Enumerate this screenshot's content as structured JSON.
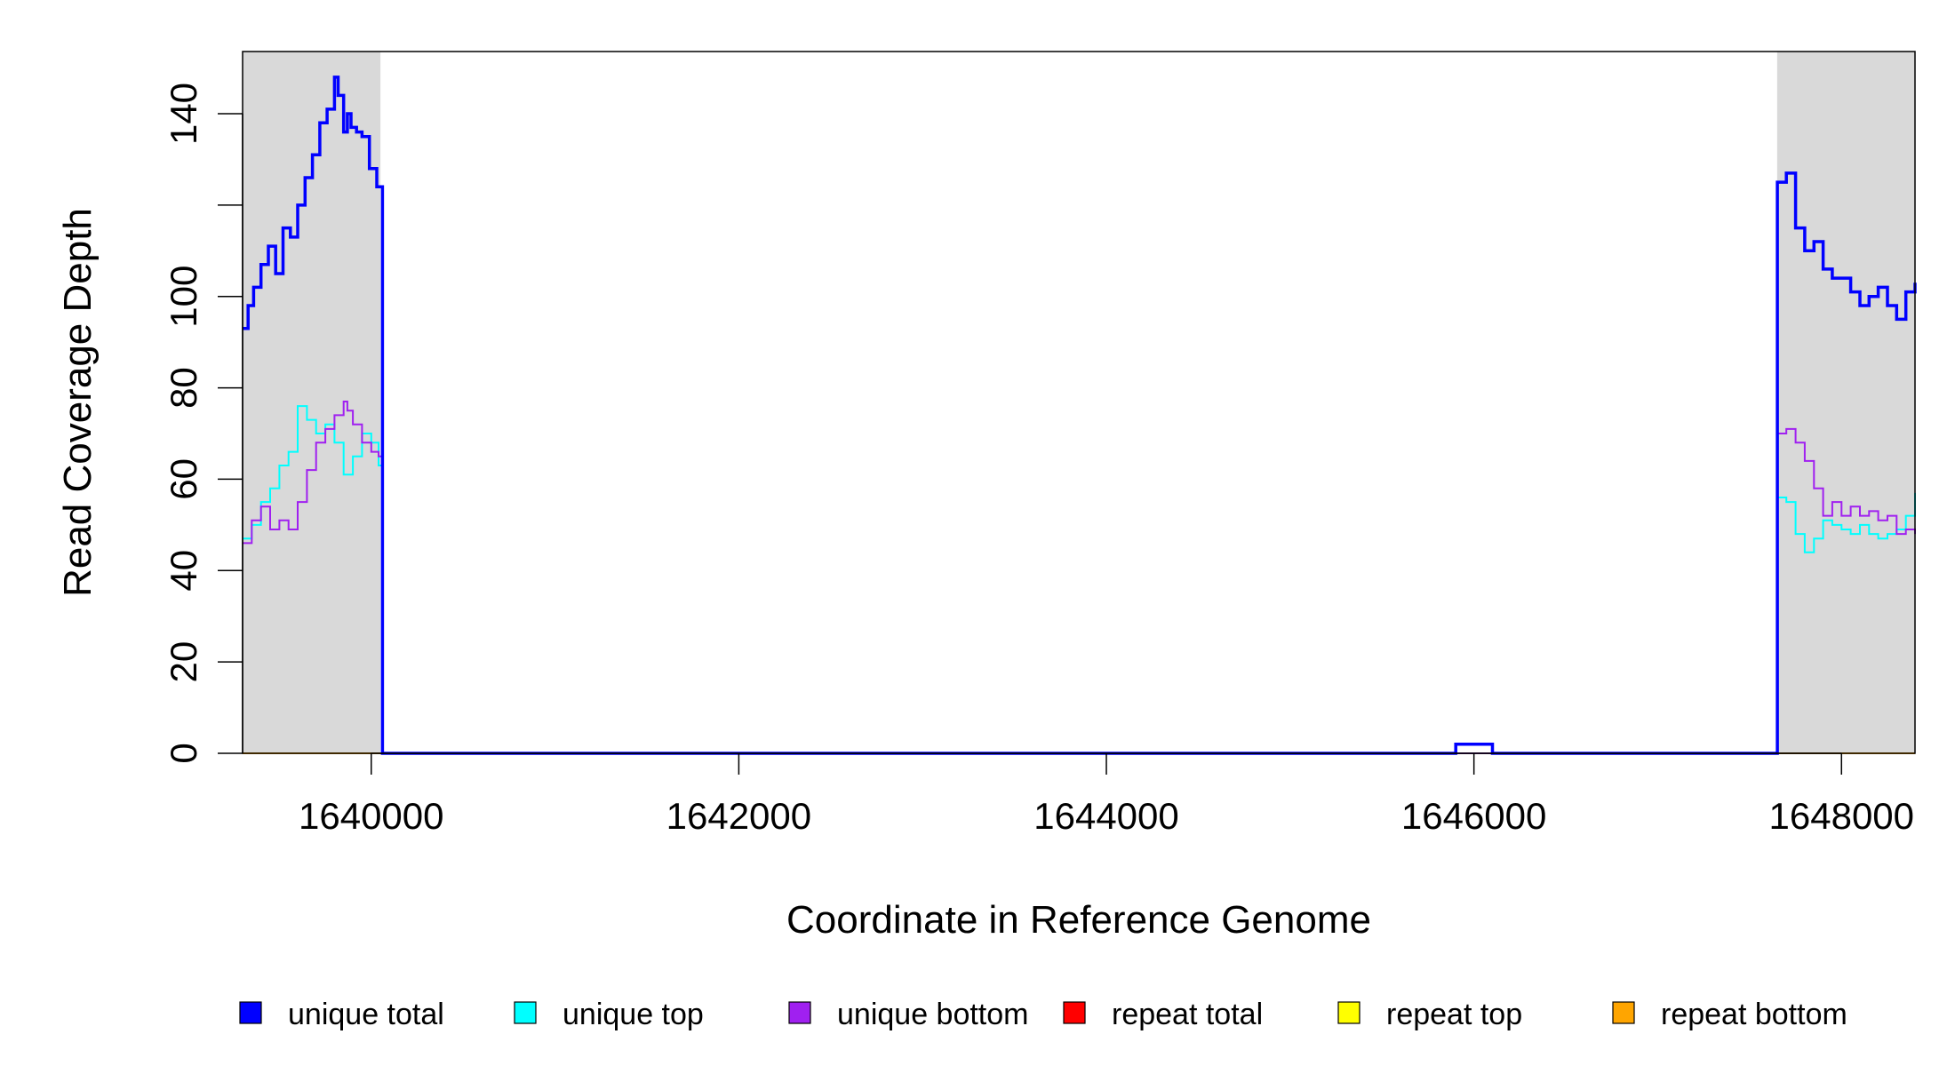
{
  "chart_data": {
    "type": "line",
    "title": "",
    "xlabel": "Coordinate in Reference Genome",
    "ylabel": "Read Coverage Depth",
    "xlim": [
      1639300,
      1648400
    ],
    "ylim": [
      0,
      150
    ],
    "x_ticks": [
      1640000,
      1642000,
      1644000,
      1646000,
      1648000
    ],
    "x_tick_labels": [
      "1640000",
      "1642000",
      "1644000",
      "1646000",
      "1648000"
    ],
    "y_ticks": [
      0,
      20,
      40,
      60,
      80,
      100,
      120,
      140
    ],
    "y_tick_labels": [
      "0",
      "20",
      "40",
      "60",
      "80",
      "100",
      "",
      "140"
    ],
    "shaded_regions": [
      {
        "x0": 1639300,
        "x1": 1640050,
        "color": "#d9d9d9"
      },
      {
        "x0": 1647650,
        "x1": 1648400,
        "color": "#d9d9d9"
      }
    ],
    "grid": false,
    "legend_position": "bottom",
    "series": [
      {
        "name": "unique total",
        "color": "#0000ff",
        "x": [
          1639300,
          1639330,
          1639360,
          1639400,
          1639440,
          1639480,
          1639520,
          1639560,
          1639600,
          1639640,
          1639680,
          1639720,
          1639760,
          1639800,
          1639820,
          1639850,
          1639870,
          1639890,
          1639920,
          1639950,
          1639990,
          1640030,
          1640060,
          1640061,
          1645900,
          1645901,
          1646100,
          1646101,
          1647650,
          1647651,
          1647700,
          1647750,
          1647800,
          1647850,
          1647900,
          1647950,
          1648000,
          1648050,
          1648100,
          1648150,
          1648200,
          1648250,
          1648300,
          1648350,
          1648400
        ],
        "y": [
          93,
          98,
          102,
          107,
          111,
          105,
          115,
          113,
          120,
          126,
          131,
          138,
          141,
          148,
          144,
          136,
          140,
          137,
          136,
          135,
          128,
          124,
          124,
          0,
          0,
          2,
          2,
          0,
          0,
          125,
          127,
          115,
          110,
          112,
          106,
          104,
          104,
          101,
          98,
          100,
          102,
          98,
          95,
          101,
          103
        ]
      },
      {
        "name": "unique top",
        "color": "#00ffff",
        "x": [
          1639300,
          1639350,
          1639400,
          1639450,
          1639500,
          1639550,
          1639600,
          1639650,
          1639700,
          1639750,
          1639800,
          1639850,
          1639900,
          1639950,
          1640000,
          1640040,
          1640060,
          1640061,
          1647650,
          1647651,
          1647700,
          1647750,
          1647800,
          1647850,
          1647900,
          1647950,
          1648000,
          1648050,
          1648100,
          1648150,
          1648200,
          1648250,
          1648300,
          1648350,
          1648400
        ],
        "y": [
          47,
          50,
          55,
          58,
          63,
          66,
          76,
          73,
          70,
          72,
          68,
          61,
          65,
          70,
          68,
          63,
          60,
          0,
          0,
          56,
          55,
          48,
          44,
          47,
          51,
          50,
          49,
          48,
          50,
          48,
          47,
          48,
          49,
          52,
          57
        ]
      },
      {
        "name": "unique bottom",
        "color": "#a020f0",
        "x": [
          1639300,
          1639350,
          1639400,
          1639450,
          1639500,
          1639550,
          1639600,
          1639650,
          1639700,
          1639750,
          1639800,
          1639850,
          1639870,
          1639900,
          1639950,
          1640000,
          1640040,
          1640060,
          1640061,
          1647650,
          1647651,
          1647700,
          1647750,
          1647800,
          1647850,
          1647900,
          1647950,
          1648000,
          1648050,
          1648100,
          1648150,
          1648200,
          1648250,
          1648300,
          1648350,
          1648400
        ],
        "y": [
          46,
          51,
          54,
          49,
          51,
          49,
          55,
          62,
          68,
          71,
          74,
          77,
          75,
          72,
          68,
          66,
          65,
          64,
          0,
          0,
          70,
          71,
          68,
          64,
          58,
          52,
          55,
          52,
          54,
          52,
          53,
          51,
          52,
          48,
          49,
          48
        ]
      },
      {
        "name": "repeat total",
        "color": "#ff0000",
        "x": [
          1639300,
          1648400
        ],
        "y": [
          0,
          0
        ]
      },
      {
        "name": "repeat top",
        "color": "#ffff00",
        "x": [
          1639300,
          1648400
        ],
        "y": [
          0,
          0
        ]
      },
      {
        "name": "repeat bottom",
        "color": "#ffa500",
        "x": [
          1639300,
          1648400
        ],
        "y": [
          0,
          0
        ]
      }
    ]
  }
}
